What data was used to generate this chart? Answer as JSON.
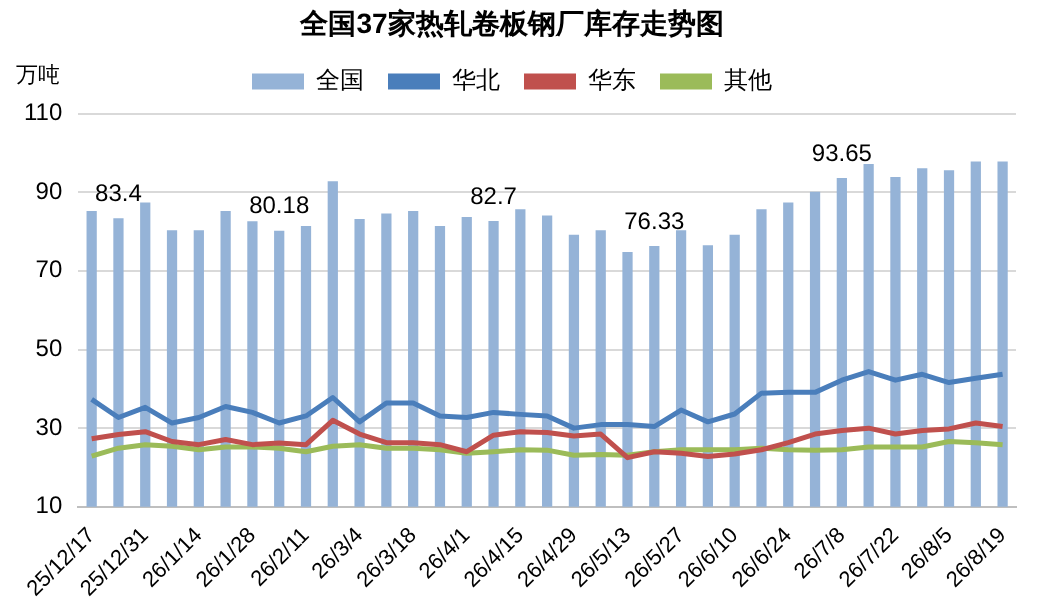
{
  "chart_data": {
    "type": "bar",
    "title": "全国37家热轧卷板钢厂库存走势图",
    "ylabel": "万吨",
    "categories": [
      "25/12/17",
      null,
      "25/12/31",
      null,
      "26/1/14",
      null,
      "26/1/28",
      null,
      "26/2/11",
      null,
      "26/3/4",
      null,
      "26/3/18",
      null,
      "26/4/1",
      null,
      "26/4/15",
      null,
      "26/4/29",
      null,
      "26/5/13",
      null,
      "26/5/27",
      null,
      "26/6/10",
      null,
      "26/6/24",
      null,
      "26/7/8",
      null,
      "26/7/22",
      null,
      "26/8/5",
      null,
      "26/8/19"
    ],
    "series": [
      {
        "name": "全国",
        "color": "#95b3d7",
        "values": [
          85.2,
          83.4,
          87.4,
          80.3,
          80.3,
          85.2,
          82.6,
          80.18,
          81.4,
          92.8,
          83.2,
          84.6,
          85.2,
          81.4,
          83.7,
          82.7,
          85.7,
          84.1,
          79.2,
          80.3,
          74.8,
          76.33,
          80.3,
          76.5,
          79.2,
          85.7,
          87.4,
          90.1,
          93.65,
          97.2,
          93.9,
          96.1,
          95.6,
          97.8,
          97.8
        ],
        "value_labels": [
          null,
          "83.4",
          null,
          null,
          null,
          null,
          null,
          "80.18",
          null,
          null,
          null,
          null,
          null,
          null,
          null,
          "82.7",
          null,
          null,
          null,
          null,
          null,
          "76.33",
          null,
          null,
          null,
          null,
          null,
          null,
          "93.65",
          null,
          null,
          null,
          null,
          null,
          null
        ]
      },
      {
        "name": "华北",
        "type": "line",
        "color": "#4a7ebb",
        "values": [
          37.3,
          32.7,
          35.3,
          31.3,
          32.7,
          35.5,
          34,
          31.3,
          33.1,
          37.8,
          31.6,
          36.4,
          36.4,
          33.1,
          32.7,
          34,
          33.5,
          33.1,
          30,
          30.9,
          30.9,
          30.4,
          34.6,
          31.6,
          33.6,
          38.9,
          39.1,
          39.1,
          42.2,
          44.4,
          42.2,
          43.7,
          41.6,
          42.7,
          43.7
        ]
      },
      {
        "name": "华东",
        "type": "line",
        "color": "#c0504d",
        "values": [
          27.3,
          28.4,
          29.1,
          26.6,
          25.8,
          27.1,
          25.8,
          26.2,
          25.8,
          32,
          28.5,
          26.3,
          26.3,
          25.8,
          24,
          28.2,
          29.1,
          28.9,
          28,
          28.5,
          22.5,
          24,
          23.6,
          22.8,
          23.4,
          24.5,
          26.3,
          28.5,
          29.4,
          30,
          28.5,
          29.4,
          29.8,
          31.3,
          30.4
        ]
      },
      {
        "name": "其他",
        "type": "line",
        "color": "#9bbb59",
        "values": [
          22.9,
          24.9,
          25.8,
          25.4,
          24.5,
          25.2,
          25.2,
          24.9,
          24,
          25.4,
          25.8,
          24.9,
          24.9,
          24.5,
          23.6,
          24,
          24.5,
          24.4,
          23.1,
          23.3,
          23.1,
          24,
          24.5,
          24.5,
          24.5,
          24.9,
          24.5,
          24.4,
          24.5,
          25.2,
          25.2,
          25.2,
          26.6,
          26.3,
          25.8
        ]
      }
    ],
    "ylim": [
      10,
      110
    ],
    "yticks": [
      10,
      30,
      50,
      70,
      90,
      110
    ],
    "grid": "y",
    "legend": "top",
    "marker": "none"
  }
}
